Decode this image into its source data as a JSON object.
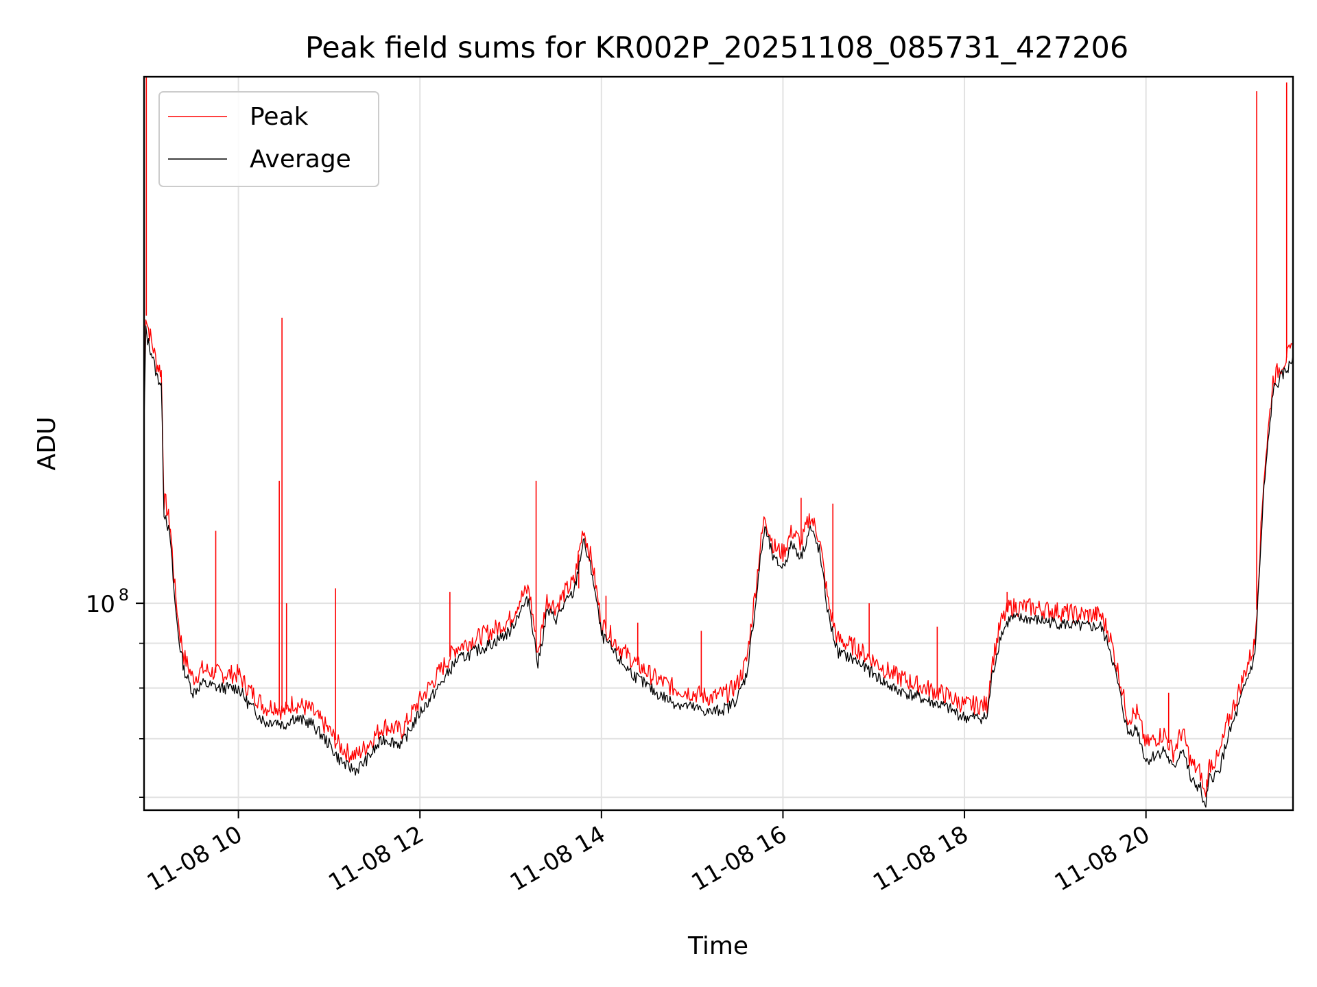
{
  "chart_data": {
    "type": "line",
    "title": "Peak field sums for KR002P_20251108_085731_427206",
    "xlabel": "Time",
    "ylabel": "ADU",
    "yscale": "log",
    "grid": true,
    "legend_position": "upper-left",
    "xlim": [
      8.96,
      21.62
    ],
    "ylim": [
      58000000,
      400000000
    ],
    "x_ticks": [
      {
        "value": 10,
        "label": "11-08 10"
      },
      {
        "value": 12,
        "label": "11-08 12"
      },
      {
        "value": 14,
        "label": "11-08 14"
      },
      {
        "value": 16,
        "label": "11-08 16"
      },
      {
        "value": 18,
        "label": "11-08 18"
      },
      {
        "value": 20,
        "label": "11-08 20"
      }
    ],
    "y_major_ticks": [
      {
        "value": 100000000,
        "base": "10",
        "exponent": "8"
      }
    ],
    "y_minor_ticks": [
      60000000,
      70000000,
      80000000,
      90000000
    ],
    "series": [
      {
        "name": "Average",
        "color": "#000000",
        "x": [
          8.96,
          8.98,
          9.0,
          9.05,
          9.1,
          9.15,
          9.18,
          9.2,
          9.25,
          9.3,
          9.35,
          9.4,
          9.5,
          9.6,
          9.8,
          10.0,
          10.1,
          10.2,
          10.3,
          10.4,
          10.5,
          10.6,
          10.8,
          11.0,
          11.1,
          11.2,
          11.3,
          11.4,
          11.5,
          11.6,
          11.8,
          11.9,
          12.0,
          12.2,
          12.4,
          12.6,
          12.8,
          13.0,
          13.1,
          13.2,
          13.3,
          13.4,
          13.5,
          13.6,
          13.7,
          13.8,
          13.9,
          14.0,
          14.1,
          14.2,
          14.4,
          14.6,
          14.8,
          15.0,
          15.2,
          15.4,
          15.5,
          15.6,
          15.7,
          15.75,
          15.8,
          15.9,
          16.0,
          16.1,
          16.2,
          16.3,
          16.4,
          16.5,
          16.6,
          16.8,
          17.0,
          17.2,
          17.5,
          17.8,
          18.0,
          18.25,
          18.3,
          18.4,
          18.5,
          18.7,
          19.0,
          19.3,
          19.5,
          19.6,
          19.7,
          19.8,
          19.9,
          20.0,
          20.1,
          20.2,
          20.3,
          20.4,
          20.5,
          20.6,
          20.65,
          20.7,
          20.8,
          20.9,
          21.0,
          21.1,
          21.2,
          21.3,
          21.4,
          21.5,
          21.6,
          21.62
        ],
        "values": [
          160000000,
          205000000,
          200000000,
          192000000,
          182000000,
          178000000,
          127000000,
          126000000,
          118000000,
          100000000,
          90000000,
          84000000,
          79000000,
          81000000,
          80000000,
          80000000,
          77000000,
          75000000,
          73000000,
          73500000,
          72500000,
          74000000,
          73000000,
          69000000,
          66500000,
          65000000,
          64500000,
          66000000,
          68000000,
          70000000,
          69000000,
          72000000,
          75000000,
          80000000,
          86000000,
          88000000,
          90000000,
          93000000,
          98000000,
          101000000,
          85000000,
          98000000,
          96000000,
          100000000,
          103000000,
          118000000,
          108000000,
          92000000,
          89000000,
          86000000,
          82000000,
          79000000,
          77000000,
          76000000,
          75000000,
          76000000,
          78000000,
          83000000,
          100000000,
          112000000,
          122000000,
          112000000,
          110000000,
          117000000,
          113000000,
          122000000,
          115000000,
          97000000,
          88000000,
          86000000,
          83000000,
          80000000,
          78000000,
          76000000,
          74000000,
          74000000,
          82000000,
          92000000,
          96000000,
          96000000,
          95000000,
          94000000,
          94000000,
          89000000,
          80000000,
          71000000,
          72000000,
          66000000,
          67000000,
          68000000,
          64500000,
          68500000,
          62500000,
          61500000,
          58000000,
          63000000,
          64000000,
          70000000,
          75000000,
          81000000,
          87000000,
          135000000,
          175000000,
          182000000,
          188000000,
          192000000
        ]
      },
      {
        "name": "Peak",
        "color": "#ff0000",
        "x": [
          8.96,
          8.98,
          9.0,
          9.05,
          9.1,
          9.15,
          9.18,
          9.2,
          9.25,
          9.3,
          9.35,
          9.4,
          9.5,
          9.6,
          9.8,
          10.0,
          10.1,
          10.2,
          10.3,
          10.4,
          10.5,
          10.6,
          10.8,
          11.0,
          11.1,
          11.2,
          11.3,
          11.4,
          11.5,
          11.6,
          11.8,
          11.9,
          12.0,
          12.2,
          12.4,
          12.6,
          12.8,
          13.0,
          13.1,
          13.2,
          13.3,
          13.4,
          13.5,
          13.6,
          13.7,
          13.8,
          13.9,
          14.0,
          14.1,
          14.2,
          14.4,
          14.6,
          14.8,
          15.0,
          15.2,
          15.4,
          15.5,
          15.6,
          15.7,
          15.75,
          15.8,
          15.9,
          16.0,
          16.1,
          16.2,
          16.3,
          16.4,
          16.5,
          16.6,
          16.8,
          17.0,
          17.2,
          17.5,
          17.8,
          18.0,
          18.25,
          18.3,
          18.4,
          18.5,
          18.7,
          19.0,
          19.3,
          19.5,
          19.6,
          19.7,
          19.8,
          19.9,
          20.0,
          20.1,
          20.2,
          20.3,
          20.4,
          20.5,
          20.6,
          20.65,
          20.7,
          20.8,
          20.9,
          21.0,
          21.1,
          21.2,
          21.3,
          21.4,
          21.5,
          21.6,
          21.62
        ],
        "values": [
          170000000,
          215000000,
          208000000,
          198000000,
          188000000,
          184000000,
          131000000,
          130000000,
          122000000,
          104000000,
          93000000,
          87000000,
          82000000,
          84000000,
          83000000,
          83000000,
          80000000,
          78000000,
          76000000,
          76500000,
          75000000,
          77000000,
          75500000,
          71500000,
          69000000,
          67500000,
          67000000,
          68500000,
          70500000,
          72500000,
          71500000,
          74500000,
          77500000,
          83000000,
          89000000,
          91000000,
          93000000,
          96000000,
          101000000,
          104000000,
          88000000,
          101000000,
          99000000,
          103000000,
          106000000,
          122000000,
          111000000,
          95000000,
          92000000,
          89000000,
          85000000,
          82000000,
          80000000,
          79000000,
          78000000,
          79000000,
          81000000,
          86000000,
          104000000,
          116000000,
          126000000,
          116000000,
          114000000,
          121000000,
          117000000,
          126000000,
          119000000,
          100000000,
          91000000,
          89000000,
          86000000,
          83000000,
          80500000,
          78500000,
          76500000,
          76500000,
          85000000,
          95000000,
          99000000,
          99000000,
          98000000,
          97000000,
          97000000,
          92000000,
          83000000,
          74000000,
          75000000,
          69000000,
          70000000,
          71000000,
          67500000,
          71500000,
          65500000,
          64000000,
          60000000,
          65500000,
          66500000,
          73000000,
          78000000,
          84000000,
          90000000,
          140000000,
          180000000,
          188000000,
          194000000,
          198000000
        ]
      }
    ],
    "peak_spikes": [
      {
        "x": 8.985,
        "y": 400000000
      },
      {
        "x": 9.75,
        "y": 121000000
      },
      {
        "x": 10.45,
        "y": 138000000
      },
      {
        "x": 10.48,
        "y": 212000000
      },
      {
        "x": 10.53,
        "y": 100000000
      },
      {
        "x": 11.07,
        "y": 104000000
      },
      {
        "x": 12.33,
        "y": 103000000
      },
      {
        "x": 13.28,
        "y": 138000000
      },
      {
        "x": 13.75,
        "y": 104000000
      },
      {
        "x": 14.05,
        "y": 102000000
      },
      {
        "x": 14.4,
        "y": 95000000
      },
      {
        "x": 15.1,
        "y": 93000000
      },
      {
        "x": 16.2,
        "y": 132000000
      },
      {
        "x": 16.55,
        "y": 130000000
      },
      {
        "x": 16.95,
        "y": 100000000
      },
      {
        "x": 17.7,
        "y": 94000000
      },
      {
        "x": 18.47,
        "y": 103000000
      },
      {
        "x": 19.1,
        "y": 98000000
      },
      {
        "x": 19.45,
        "y": 99000000
      },
      {
        "x": 20.25,
        "y": 79000000
      },
      {
        "x": 21.22,
        "y": 385000000
      },
      {
        "x": 21.55,
        "y": 394000000
      }
    ]
  }
}
